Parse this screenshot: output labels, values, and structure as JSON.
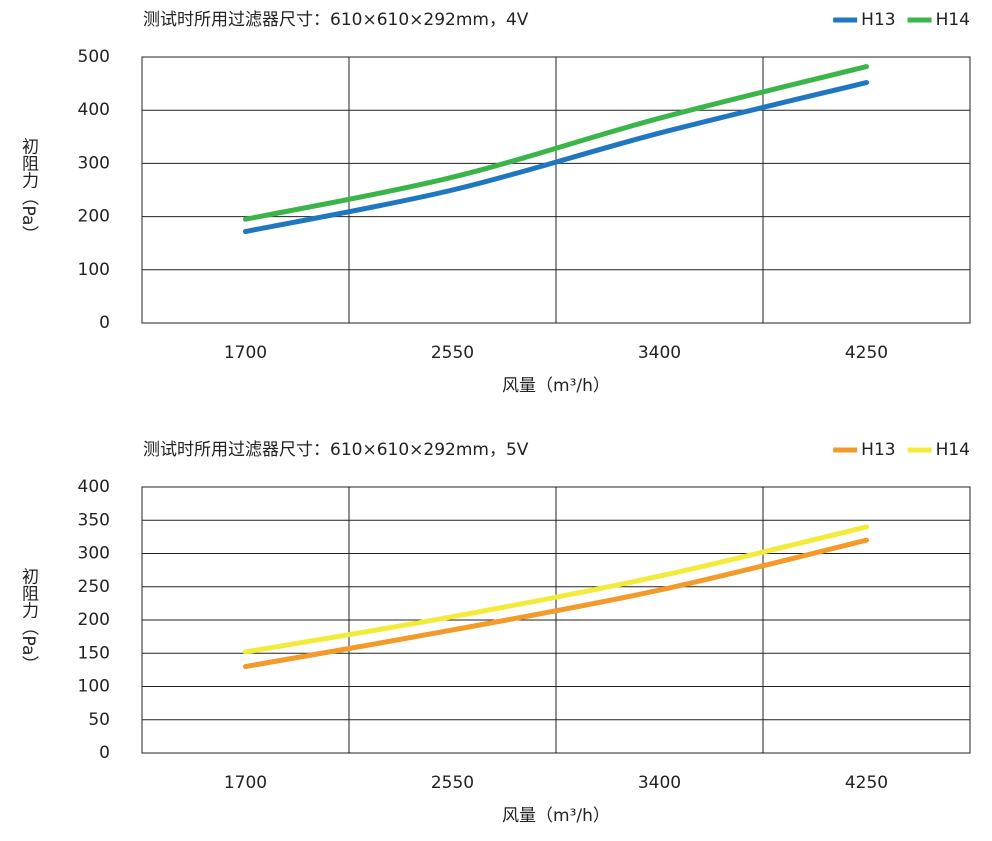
{
  "chart_data": [
    {
      "type": "line",
      "title": "测试时所用过滤器尺寸：610×610×292mm，4V",
      "x_label": "风量（m³/h）",
      "y_label": "初阻力（Pa）",
      "categories": [
        "1700",
        "2550",
        "3400",
        "4250"
      ],
      "series": [
        {
          "name": "H13",
          "color": "#1f77c2",
          "values": [
            172,
            250,
            357,
            452
          ]
        },
        {
          "name": "H14",
          "color": "#3bb54a",
          "values": [
            195,
            274,
            385,
            482
          ]
        }
      ],
      "ylim": [
        0,
        500
      ],
      "yticks": [
        0,
        100,
        200,
        300,
        400,
        500
      ],
      "grid": true,
      "legend": "top-right"
    },
    {
      "type": "line",
      "title": "测试时所用过滤器尺寸：610×610×292mm，5V",
      "x_label": "风量（m³/h）",
      "y_label": "初阻力（Pa）",
      "categories": [
        "1700",
        "2550",
        "3400",
        "4250"
      ],
      "series": [
        {
          "name": "H13",
          "color": "#f39a2b",
          "values": [
            130,
            185,
            245,
            320
          ]
        },
        {
          "name": "H14",
          "color": "#f2eb3a",
          "values": [
            152,
            205,
            266,
            340
          ]
        }
      ],
      "ylim": [
        0,
        400
      ],
      "yticks": [
        0,
        50,
        100,
        150,
        200,
        250,
        300,
        350,
        400
      ],
      "grid": true,
      "legend": "top-right"
    }
  ]
}
